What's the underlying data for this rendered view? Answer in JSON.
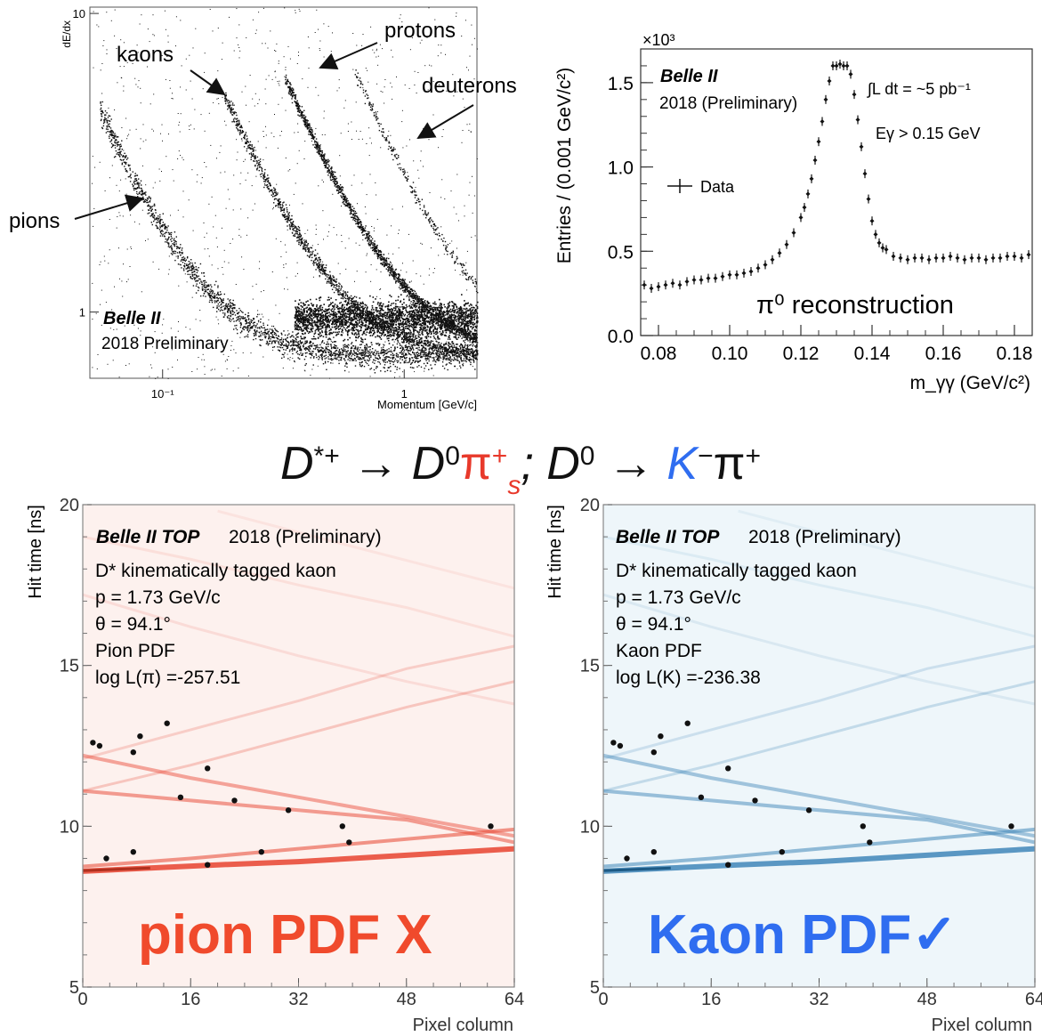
{
  "equation": {
    "parts": [
      {
        "text": "D",
        "color": "#111111"
      },
      {
        "text": "*+",
        "color": "#111111",
        "sup": true
      },
      {
        "text": " → ",
        "color": "#111111"
      },
      {
        "text": "D",
        "color": "#111111"
      },
      {
        "text": "0",
        "color": "#111111",
        "sup": true
      },
      {
        "text": "π",
        "color": "#e8392b"
      },
      {
        "text": "+",
        "color": "#e8392b",
        "sup": true
      },
      {
        "text": "s",
        "color": "#e8392b",
        "sub": true
      },
      {
        "text": "; D",
        "color": "#111111"
      },
      {
        "text": "0",
        "color": "#111111",
        "sup": true
      },
      {
        "text": " → ",
        "color": "#111111"
      },
      {
        "text": "K",
        "color": "#2f6df0"
      },
      {
        "text": "−",
        "color": "#111111",
        "sup": true
      },
      {
        "text": "π",
        "color": "#111111"
      },
      {
        "text": "+",
        "color": "#111111",
        "sup": true
      }
    ]
  },
  "chart_data": [
    {
      "type": "scatter",
      "title": "",
      "xlabel": "Momentum  [GeV/c]",
      "ylabel": "dE/dx",
      "xscale": "log",
      "yscale": "log",
      "xlim": [
        0.05,
        2.0
      ],
      "ylim": [
        0.6,
        10.5
      ],
      "x_ticks": [
        {
          "value": 0.1,
          "label": "10⁻¹"
        },
        {
          "value": 1,
          "label": "1"
        }
      ],
      "y_ticks": [
        {
          "value": 1,
          "label": "1"
        },
        {
          "value": 10,
          "label": "10"
        }
      ],
      "band_labels": [
        "pions",
        "kaons",
        "protons",
        "deuterons"
      ],
      "experiment": "Belle II",
      "note": "2018 Preliminary",
      "colors": {
        "points": "#111111"
      }
    },
    {
      "type": "scatter",
      "title": "π⁰ reconstruction",
      "xlabel": "m_γγ (GeV/c²)",
      "ylabel": "Entries / (0.001 GeV/c²)",
      "y_multiplier": "×10³",
      "xlim": [
        0.075,
        0.185
      ],
      "ylim": [
        0.0,
        1.7
      ],
      "x_ticks": [
        0.08,
        0.1,
        0.12,
        0.14,
        0.16,
        0.18
      ],
      "y_ticks": [
        0.0,
        0.5,
        1.0,
        1.5
      ],
      "legend": "Data",
      "legend_position": "left",
      "experiment": "Belle II",
      "note": "2018 (Preliminary)",
      "annotations": [
        "∫L dt = ~5 pb⁻¹",
        "Eγ > 0.15 GeV"
      ],
      "series": [
        {
          "name": "Data",
          "x": [
            0.076,
            0.078,
            0.08,
            0.082,
            0.084,
            0.086,
            0.088,
            0.09,
            0.092,
            0.094,
            0.096,
            0.098,
            0.1,
            0.102,
            0.104,
            0.106,
            0.108,
            0.11,
            0.112,
            0.114,
            0.116,
            0.118,
            0.12,
            0.121,
            0.122,
            0.123,
            0.124,
            0.125,
            0.126,
            0.127,
            0.128,
            0.129,
            0.13,
            0.131,
            0.132,
            0.133,
            0.134,
            0.135,
            0.136,
            0.137,
            0.138,
            0.139,
            0.14,
            0.141,
            0.142,
            0.143,
            0.144,
            0.146,
            0.148,
            0.15,
            0.152,
            0.154,
            0.156,
            0.158,
            0.16,
            0.162,
            0.164,
            0.166,
            0.168,
            0.17,
            0.172,
            0.174,
            0.176,
            0.178,
            0.18,
            0.182,
            0.184
          ],
          "y": [
            0.3,
            0.28,
            0.29,
            0.3,
            0.31,
            0.3,
            0.32,
            0.33,
            0.33,
            0.34,
            0.34,
            0.35,
            0.36,
            0.36,
            0.37,
            0.38,
            0.4,
            0.42,
            0.45,
            0.49,
            0.54,
            0.61,
            0.7,
            0.76,
            0.84,
            0.93,
            1.04,
            1.15,
            1.27,
            1.4,
            1.51,
            1.6,
            1.6,
            1.61,
            1.6,
            1.6,
            1.55,
            1.43,
            1.28,
            1.12,
            0.96,
            0.81,
            0.68,
            0.6,
            0.55,
            0.52,
            0.51,
            0.47,
            0.46,
            0.45,
            0.46,
            0.46,
            0.45,
            0.46,
            0.46,
            0.47,
            0.46,
            0.45,
            0.46,
            0.46,
            0.45,
            0.46,
            0.46,
            0.47,
            0.47,
            0.46,
            0.48
          ]
        }
      ]
    },
    {
      "type": "heatmap",
      "title": "",
      "experiment": "Belle II TOP",
      "note": "2018 (Preliminary)",
      "info": [
        "D* kinematically tagged kaon",
        "p = 1.73 GeV/c",
        "θ = 94.1°",
        "Pion PDF",
        "log L(π) =-257.51"
      ],
      "verdict": "pion PDF X",
      "xlabel": "Pixel column",
      "ylabel": "Hit time [ns]",
      "xlim": [
        0,
        64
      ],
      "ylim": [
        5,
        20
      ],
      "x_ticks": [
        0,
        16,
        32,
        48,
        64
      ],
      "y_ticks": [
        5,
        10,
        15,
        20
      ],
      "colors": {
        "pdf": "#e8432f",
        "verdict": "#f04a2c",
        "background": "#fdf1ee"
      },
      "hits": [
        [
          1.5,
          12.6
        ],
        [
          2.5,
          12.5
        ],
        [
          7.5,
          12.3
        ],
        [
          8.5,
          12.8
        ],
        [
          12.5,
          13.2
        ],
        [
          14.5,
          10.9
        ],
        [
          18.5,
          11.8
        ],
        [
          22.5,
          10.8
        ],
        [
          30.5,
          10.5
        ],
        [
          38.5,
          10.0
        ],
        [
          39.5,
          9.5
        ],
        [
          60.5,
          10.0
        ],
        [
          3.5,
          9.0
        ],
        [
          7.5,
          9.2
        ],
        [
          18.5,
          8.8
        ],
        [
          26.5,
          9.2
        ]
      ]
    },
    {
      "type": "heatmap",
      "title": "",
      "experiment": "Belle II TOP",
      "note": "2018 (Preliminary)",
      "info": [
        "D* kinematically tagged kaon",
        "p = 1.73 GeV/c",
        "θ = 94.1°",
        "Kaon PDF",
        "log L(K) =-236.38"
      ],
      "verdict": "Kaon PDF✓",
      "xlabel": "Pixel column",
      "ylabel": "Hit time [ns]",
      "xlim": [
        0,
        64
      ],
      "ylim": [
        5,
        20
      ],
      "x_ticks": [
        0,
        16,
        32,
        48,
        64
      ],
      "y_ticks": [
        5,
        10,
        15,
        20
      ],
      "colors": {
        "pdf": "#3f86b8",
        "verdict": "#2f6df0",
        "background": "#eef6fa"
      },
      "hits": [
        [
          1.5,
          12.6
        ],
        [
          2.5,
          12.5
        ],
        [
          7.5,
          12.3
        ],
        [
          8.5,
          12.8
        ],
        [
          12.5,
          13.2
        ],
        [
          14.5,
          10.9
        ],
        [
          18.5,
          11.8
        ],
        [
          22.5,
          10.8
        ],
        [
          30.5,
          10.5
        ],
        [
          38.5,
          10.0
        ],
        [
          39.5,
          9.5
        ],
        [
          60.5,
          10.0
        ],
        [
          3.5,
          9.0
        ],
        [
          7.5,
          9.2
        ],
        [
          18.5,
          8.8
        ],
        [
          26.5,
          9.2
        ]
      ]
    }
  ]
}
